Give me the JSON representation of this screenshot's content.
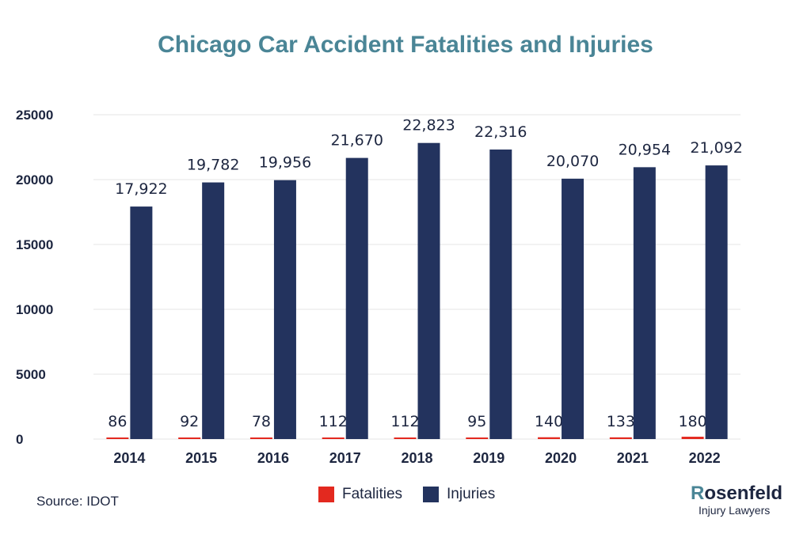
{
  "colors": {
    "fatalities": "#e3291f",
    "injuries": "#23335e",
    "title": "#4a8596",
    "text": "#1d2640"
  },
  "source": "Source: IDOT",
  "brand": {
    "name_initial": "R",
    "name_rest": "osenfeld",
    "subtitle": "Injury Lawyers"
  },
  "chart_data": {
    "type": "bar",
    "title": "Chicago Car Accident Fatalities and Injuries",
    "xlabel": "",
    "ylabel": "",
    "ylim": [
      0,
      25000
    ],
    "yticks": [
      "25000",
      "20000",
      "15000",
      "10000",
      "5000",
      "0"
    ],
    "grid": true,
    "legend_position": "bottom-center",
    "categories": [
      "2014",
      "2015",
      "2016",
      "2017",
      "2018",
      "2019",
      "2020",
      "2021",
      "2022"
    ],
    "series": [
      {
        "name": "Fatalities",
        "values": [
          86,
          92,
          78,
          112,
          112,
          95,
          140,
          133,
          180
        ],
        "labels": [
          "86",
          "92",
          "78",
          "112",
          "112",
          "95",
          "140",
          "133",
          "180"
        ]
      },
      {
        "name": "Injuries",
        "values": [
          17922,
          19782,
          19956,
          21670,
          22823,
          22316,
          20070,
          20954,
          21092
        ],
        "labels": [
          "17,922",
          "19,782",
          "19,956",
          "21,670",
          "22,823",
          "22,316",
          "20,070",
          "20,954",
          "21,092"
        ]
      }
    ]
  }
}
